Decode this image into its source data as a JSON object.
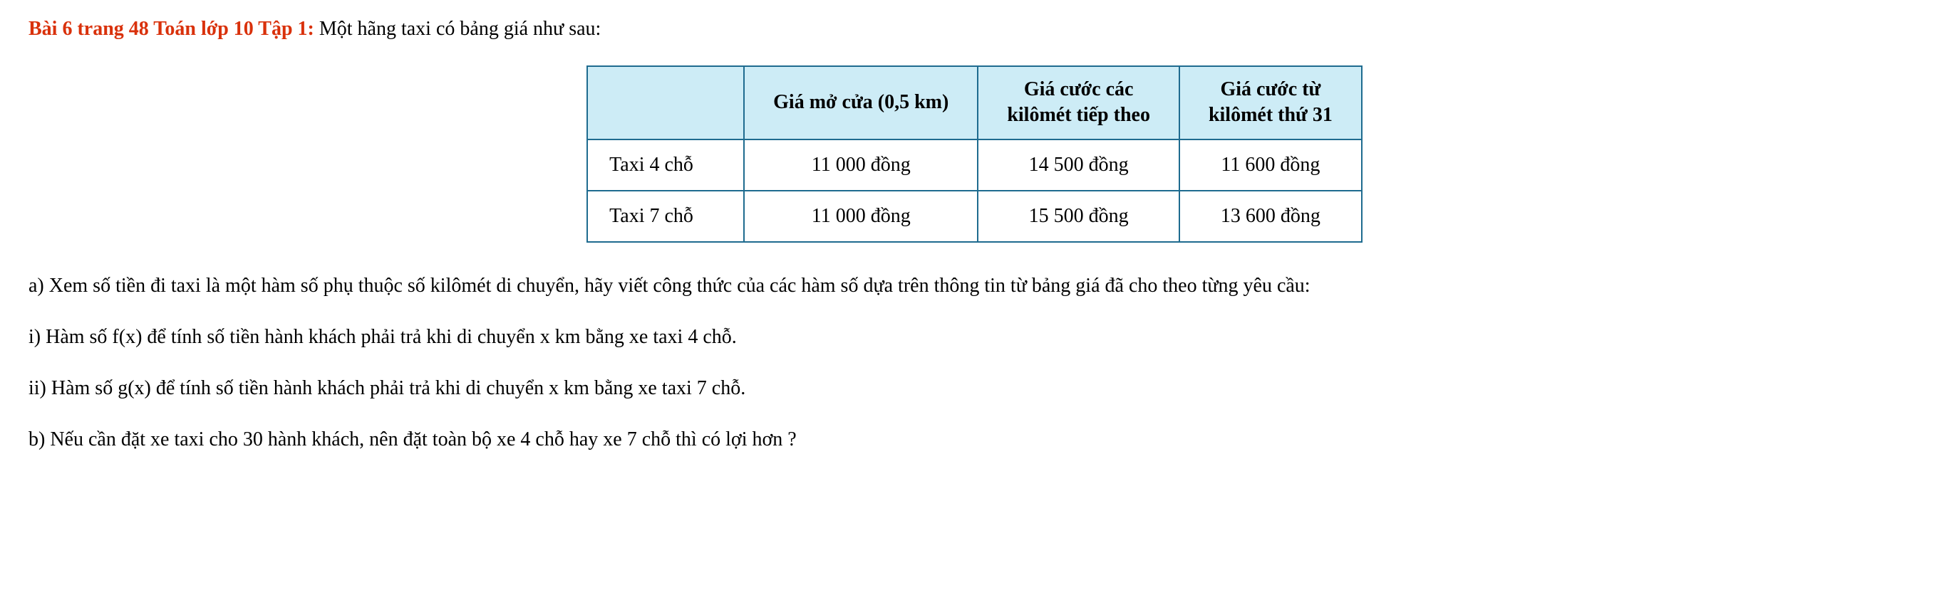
{
  "title": {
    "red_part": "Bài 6 trang 48 Toán lớp 10 Tập 1:",
    "black_part": " Một hãng taxi có bảng giá như sau:"
  },
  "table": {
    "header": {
      "c0": "",
      "c1": "Giá mở cửa (0,5 km)",
      "c2_line1": "Giá cước các",
      "c2_line2": "kilômét tiếp theo",
      "c3_line1": "Giá cước từ",
      "c3_line2": "kilômét thứ 31"
    },
    "row1": {
      "c0": "Taxi 4 chỗ",
      "c1": "11 000 đồng",
      "c2": "14 500 đồng",
      "c3": "11 600 đồng"
    },
    "row2": {
      "c0": "Taxi 7 chỗ",
      "c1": "11 000 đồng",
      "c2": "15 500 đồng",
      "c3": "13 600 đồng"
    }
  },
  "paragraphs": {
    "a": "a) Xem số tiền đi taxi là một hàm số phụ thuộc số kilômét di chuyển, hãy viết công thức của các hàm số dựa trên thông tin từ bảng giá đã cho theo từng yêu cầu:",
    "i": "i) Hàm số f(x) để tính số tiền hành khách phải trả khi di chuyển x km bằng xe taxi 4 chỗ.",
    "ii": "ii) Hàm số g(x) để tính số tiền hành khách phải trả khi di chuyển x km bằng xe taxi 7 chỗ.",
    "b": "b) Nếu cần đặt xe taxi cho 30 hành khách, nên đặt toàn bộ xe 4 chỗ hay xe 7 chỗ thì có lợi hơn ?"
  }
}
